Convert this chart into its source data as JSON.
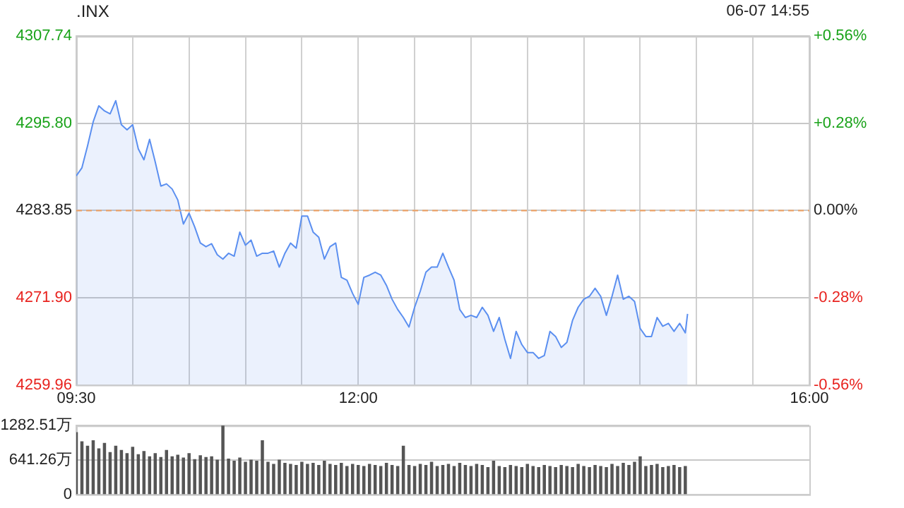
{
  "chart_data": [
    {
      "type": "area",
      "title": ".INX",
      "subtitle": "06-07 14:55",
      "xlim": [
        9.5,
        16
      ],
      "xticks": [
        {
          "value": 9.5,
          "label": "09:30"
        },
        {
          "value": 10,
          "label": null
        },
        {
          "value": 10.5,
          "label": null
        },
        {
          "value": 11,
          "label": null
        },
        {
          "value": 11.5,
          "label": null
        },
        {
          "value": 12,
          "label": "12:00"
        },
        {
          "value": 12.5,
          "label": null
        },
        {
          "value": 13,
          "label": null
        },
        {
          "value": 13.5,
          "label": null
        },
        {
          "value": 14,
          "label": null
        },
        {
          "value": 14.5,
          "label": null
        },
        {
          "value": 15,
          "label": null
        },
        {
          "value": 15.5,
          "label": null
        },
        {
          "value": 16,
          "label": "16:00"
        }
      ],
      "ylim": [
        4259.96,
        4307.74
      ],
      "yticks": [
        4259.96,
        {
          "value": 4271.9,
          "label": "4271.90"
        },
        4283.85,
        {
          "value": 4295.8,
          "label": "4295.80"
        },
        4307.74
      ],
      "y2lim": [
        -0.56,
        0.56
      ],
      "y2ticks": [
        {
          "value": -0.56,
          "label": "-0.56%"
        },
        {
          "value": -0.28,
          "label": "-0.28%"
        },
        {
          "value": 0,
          "label": "0.00%"
        },
        {
          "value": 0.28,
          "label": "+0.28%"
        },
        {
          "value": 0.56,
          "label": "+0.56%"
        }
      ],
      "grid": true,
      "marker": "none",
      "ref_lines": [
        {
          "axis": "y",
          "value": 4283.85,
          "color": "#f0a060",
          "line_style": "dashed"
        }
      ],
      "series": [
        {
          "color": "#5b8ff0",
          "x": [
            9.5,
            9.55,
            9.6,
            9.65,
            9.7,
            9.75,
            9.8,
            9.85,
            9.9,
            9.95,
            10,
            10.05,
            10.1,
            10.15,
            10.2,
            10.25,
            10.3,
            10.35,
            10.4,
            10.45,
            10.5,
            10.55,
            10.6,
            10.65,
            10.7,
            10.75,
            10.8,
            10.85,
            10.9,
            10.95,
            11,
            11.05,
            11.1,
            11.15,
            11.2,
            11.25,
            11.3,
            11.35,
            11.4,
            11.45,
            11.5,
            11.55,
            11.6,
            11.65,
            11.7,
            11.75,
            11.8,
            11.85,
            11.9,
            11.95,
            12,
            12.05,
            12.1,
            12.15,
            12.2,
            12.25,
            12.3,
            12.35,
            12.4,
            12.45,
            12.5,
            12.55,
            12.6,
            12.65,
            12.7,
            12.75,
            12.8,
            12.85,
            12.9,
            12.95,
            13,
            13.05,
            13.1,
            13.15,
            13.2,
            13.25,
            13.3,
            13.35,
            13.4,
            13.45,
            13.5,
            13.55,
            13.6,
            13.65,
            13.7,
            13.75,
            13.8,
            13.85,
            13.9,
            13.95,
            14,
            14.05,
            14.1,
            14.15,
            14.2,
            14.25,
            14.3,
            14.35,
            14.4,
            14.45,
            14.5,
            14.55,
            14.6,
            14.65,
            14.7,
            14.75,
            14.8,
            14.85,
            14.9,
            14.92
          ],
          "values": [
            4288.6,
            4289.7,
            4292.7,
            4296.0,
            4298.2,
            4297.5,
            4297.1,
            4298.9,
            4295.6,
            4294.9,
            4295.6,
            4292.3,
            4290.8,
            4293.6,
            4290.5,
            4287.2,
            4287.5,
            4286.8,
            4285.3,
            4282.0,
            4283.5,
            4281.6,
            4279.4,
            4278.9,
            4279.3,
            4277.8,
            4277.2,
            4278.0,
            4277.6,
            4280.9,
            4279.1,
            4279.8,
            4277.6,
            4278.0,
            4278.0,
            4278.3,
            4276.1,
            4278.0,
            4279.4,
            4278.7,
            4283.1,
            4283.1,
            4280.9,
            4280.2,
            4277.2,
            4278.9,
            4279.4,
            4274.7,
            4274.3,
            4272.5,
            4271.0,
            4274.7,
            4275.0,
            4275.4,
            4275.0,
            4273.6,
            4271.7,
            4270.3,
            4269.2,
            4267.9,
            4270.6,
            4272.8,
            4275.4,
            4276.1,
            4276.1,
            4278.0,
            4276.1,
            4274.3,
            4270.3,
            4269.2,
            4269.5,
            4269.2,
            4270.6,
            4269.5,
            4267.3,
            4269.2,
            4266.2,
            4263.6,
            4267.3,
            4265.5,
            4264.4,
            4264.4,
            4263.6,
            4264.0,
            4267.3,
            4266.6,
            4265.1,
            4265.8,
            4268.8,
            4270.6,
            4271.7,
            4272.1,
            4273.2,
            4272.1,
            4269.5,
            4272.1,
            4275.0,
            4271.7,
            4272.1,
            4271.4,
            4267.7,
            4266.6,
            4266.6,
            4269.2,
            4268.0,
            4268.4,
            4267.3,
            4268.4,
            4267.1,
            4269.7
          ]
        }
      ]
    },
    {
      "type": "bar",
      "xlim": [
        9.5,
        16
      ],
      "ylim": [
        0,
        1282.51
      ],
      "yticks": [
        0,
        {
          "value": 641.26,
          "label": "641.26万"
        },
        {
          "value": 1282.51,
          "label": "1282.51万"
        }
      ],
      "grid": "y",
      "tick_labels": "y",
      "series": [
        {
          "color": "#555555",
          "x": [
            9.5,
            9.55,
            9.6,
            9.65,
            9.7,
            9.75,
            9.8,
            9.85,
            9.9,
            9.95,
            10,
            10.05,
            10.1,
            10.15,
            10.2,
            10.25,
            10.3,
            10.35,
            10.4,
            10.45,
            10.5,
            10.55,
            10.6,
            10.65,
            10.7,
            10.75,
            10.8,
            10.85,
            10.9,
            10.95,
            11,
            11.05,
            11.1,
            11.15,
            11.2,
            11.25,
            11.3,
            11.35,
            11.4,
            11.45,
            11.5,
            11.55,
            11.6,
            11.65,
            11.7,
            11.75,
            11.8,
            11.85,
            11.9,
            11.95,
            12,
            12.05,
            12.1,
            12.15,
            12.2,
            12.25,
            12.3,
            12.35,
            12.4,
            12.45,
            12.5,
            12.55,
            12.6,
            12.65,
            12.7,
            12.75,
            12.8,
            12.85,
            12.9,
            12.95,
            13,
            13.05,
            13.1,
            13.15,
            13.2,
            13.25,
            13.3,
            13.35,
            13.4,
            13.45,
            13.5,
            13.55,
            13.6,
            13.65,
            13.7,
            13.75,
            13.8,
            13.85,
            13.9,
            13.95,
            14,
            14.05,
            14.1,
            14.15,
            14.2,
            14.25,
            14.3,
            14.35,
            14.4,
            14.45,
            14.5,
            14.55,
            14.6,
            14.65,
            14.7,
            14.75,
            14.8,
            14.85,
            14.9
          ],
          "values": [
            1150,
            980,
            900,
            1000,
            850,
            950,
            780,
            900,
            820,
            760,
            880,
            740,
            800,
            700,
            760,
            690,
            820,
            700,
            730,
            680,
            760,
            650,
            720,
            690,
            700,
            640,
            1280,
            660,
            620,
            680,
            600,
            640,
            620,
            1000,
            600,
            560,
            640,
            580,
            560,
            540,
            600,
            560,
            580,
            540,
            620,
            560,
            540,
            580,
            520,
            560,
            540,
            520,
            560,
            540,
            520,
            580,
            540,
            520,
            900,
            540,
            520,
            560,
            540,
            600,
            520,
            540,
            560,
            520,
            580,
            540,
            520,
            560,
            540,
            500,
            620,
            520,
            500,
            540,
            520,
            500,
            560,
            520,
            500,
            540,
            520,
            500,
            540,
            520,
            500,
            560,
            520,
            500,
            540,
            520,
            500,
            560,
            520,
            580,
            540,
            600,
            700,
            520,
            540,
            560,
            500,
            520,
            540,
            500,
            520
          ]
        }
      ]
    }
  ]
}
